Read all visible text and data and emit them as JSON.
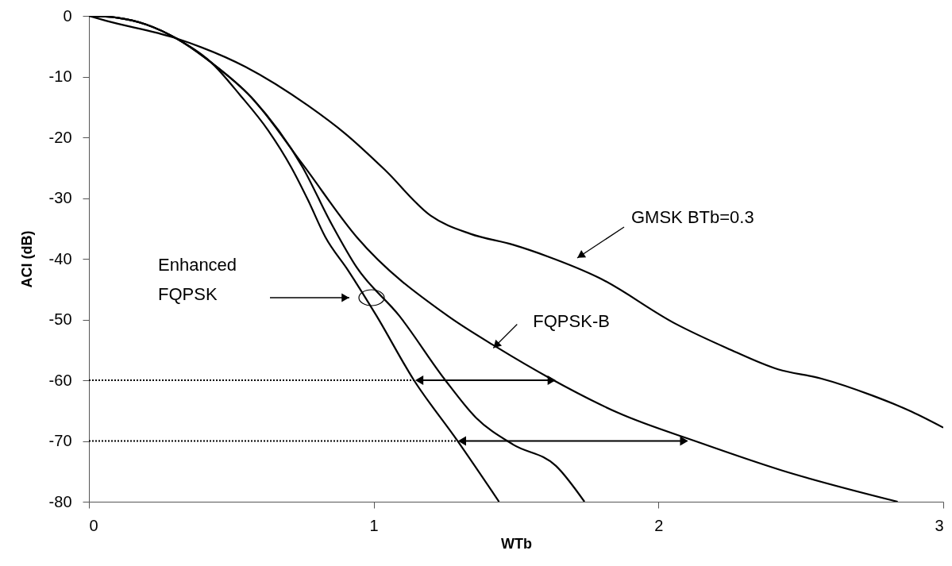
{
  "chart_data": {
    "type": "line",
    "xlabel": "WTb",
    "ylabel": "ACI (dB)",
    "xlim": [
      0,
      3
    ],
    "ylim": [
      -80,
      0
    ],
    "xticks": [
      0,
      1,
      2,
      3
    ],
    "yticks": [
      -80,
      -70,
      -60,
      -50,
      -40,
      -30,
      -20,
      -10,
      0
    ],
    "grid": false,
    "marker": "none",
    "line_style": "solid",
    "series": [
      {
        "color": "#000000",
        "x": [
          0,
          0.06,
          0.3,
          0.55,
          0.77,
          0.9,
          1.04,
          1.2,
          1.34,
          1.49,
          1.61,
          1.79,
          2.06,
          2.24,
          2.42,
          2.57,
          2.75,
          2.89,
          3.0
        ],
        "values": [
          0,
          -0.8,
          -3.6,
          -8.4,
          -14.8,
          -19.4,
          -25.4,
          -32.9,
          -35.9,
          -37.7,
          -39.6,
          -43.1,
          -50.7,
          -54.7,
          -58.2,
          -59.7,
          -62.5,
          -65.2,
          -67.8
        ]
      },
      {
        "color": "#000000",
        "x": [
          0,
          0.1,
          0.2,
          0.31,
          0.43,
          0.57,
          0.75,
          0.94,
          1.26,
          1.43,
          1.62,
          1.86,
          2.14,
          2.43,
          2.84
        ],
        "values": [
          0,
          -0.3,
          -1.4,
          -3.8,
          -7.7,
          -13.4,
          -24.4,
          -36.4,
          -49.4,
          -54.5,
          -59.7,
          -65.4,
          -70.2,
          -74.8,
          -80
        ]
      },
      {
        "color": "#000000",
        "x": [
          0,
          0.1,
          0.2,
          0.31,
          0.43,
          0.57,
          0.75,
          0.85,
          0.94,
          1.09,
          1.25,
          1.36,
          1.49,
          1.64,
          1.74
        ],
        "values": [
          0,
          -0.3,
          -1.4,
          -3.8,
          -7.7,
          -13.4,
          -24.9,
          -34.1,
          -41.4,
          -49.4,
          -59.9,
          -66.2,
          -70.6,
          -74.1,
          -80
        ]
      },
      {
        "color": "#000000",
        "x": [
          0,
          0.1,
          0.2,
          0.31,
          0.43,
          0.53,
          0.63,
          0.71,
          0.77,
          0.83,
          0.91,
          1.01,
          1.14,
          1.29,
          1.44
        ],
        "values": [
          0,
          -0.3,
          -1.4,
          -3.8,
          -7.7,
          -13.0,
          -18.9,
          -24.9,
          -30.4,
          -36.4,
          -41.9,
          -49.4,
          -59.9,
          -69.7,
          -80
        ]
      },
      {
        "color": "#000000",
        "line_style": "dotted",
        "x": [
          0,
          1.14
        ],
        "values": [
          -60,
          -60
        ]
      },
      {
        "color": "#000000",
        "line_style": "dotted",
        "x": [
          0,
          1.29
        ],
        "values": [
          -70,
          -70
        ]
      },
      {
        "color": "#000000",
        "marker": "triangle",
        "x": [
          1.16,
          1.625
        ],
        "values": [
          -60,
          -60
        ]
      },
      {
        "color": "#000000",
        "marker": "triangle",
        "x": [
          1.31,
          2.09
        ],
        "values": [
          -70,
          -70
        ]
      }
    ],
    "annotations": [
      "Enhanced\nFQPSK",
      {
        "text": "FQPSK-B",
        "x": 1.42,
        "y": -54.7
      },
      "GMSK BTb=0.3"
    ]
  }
}
